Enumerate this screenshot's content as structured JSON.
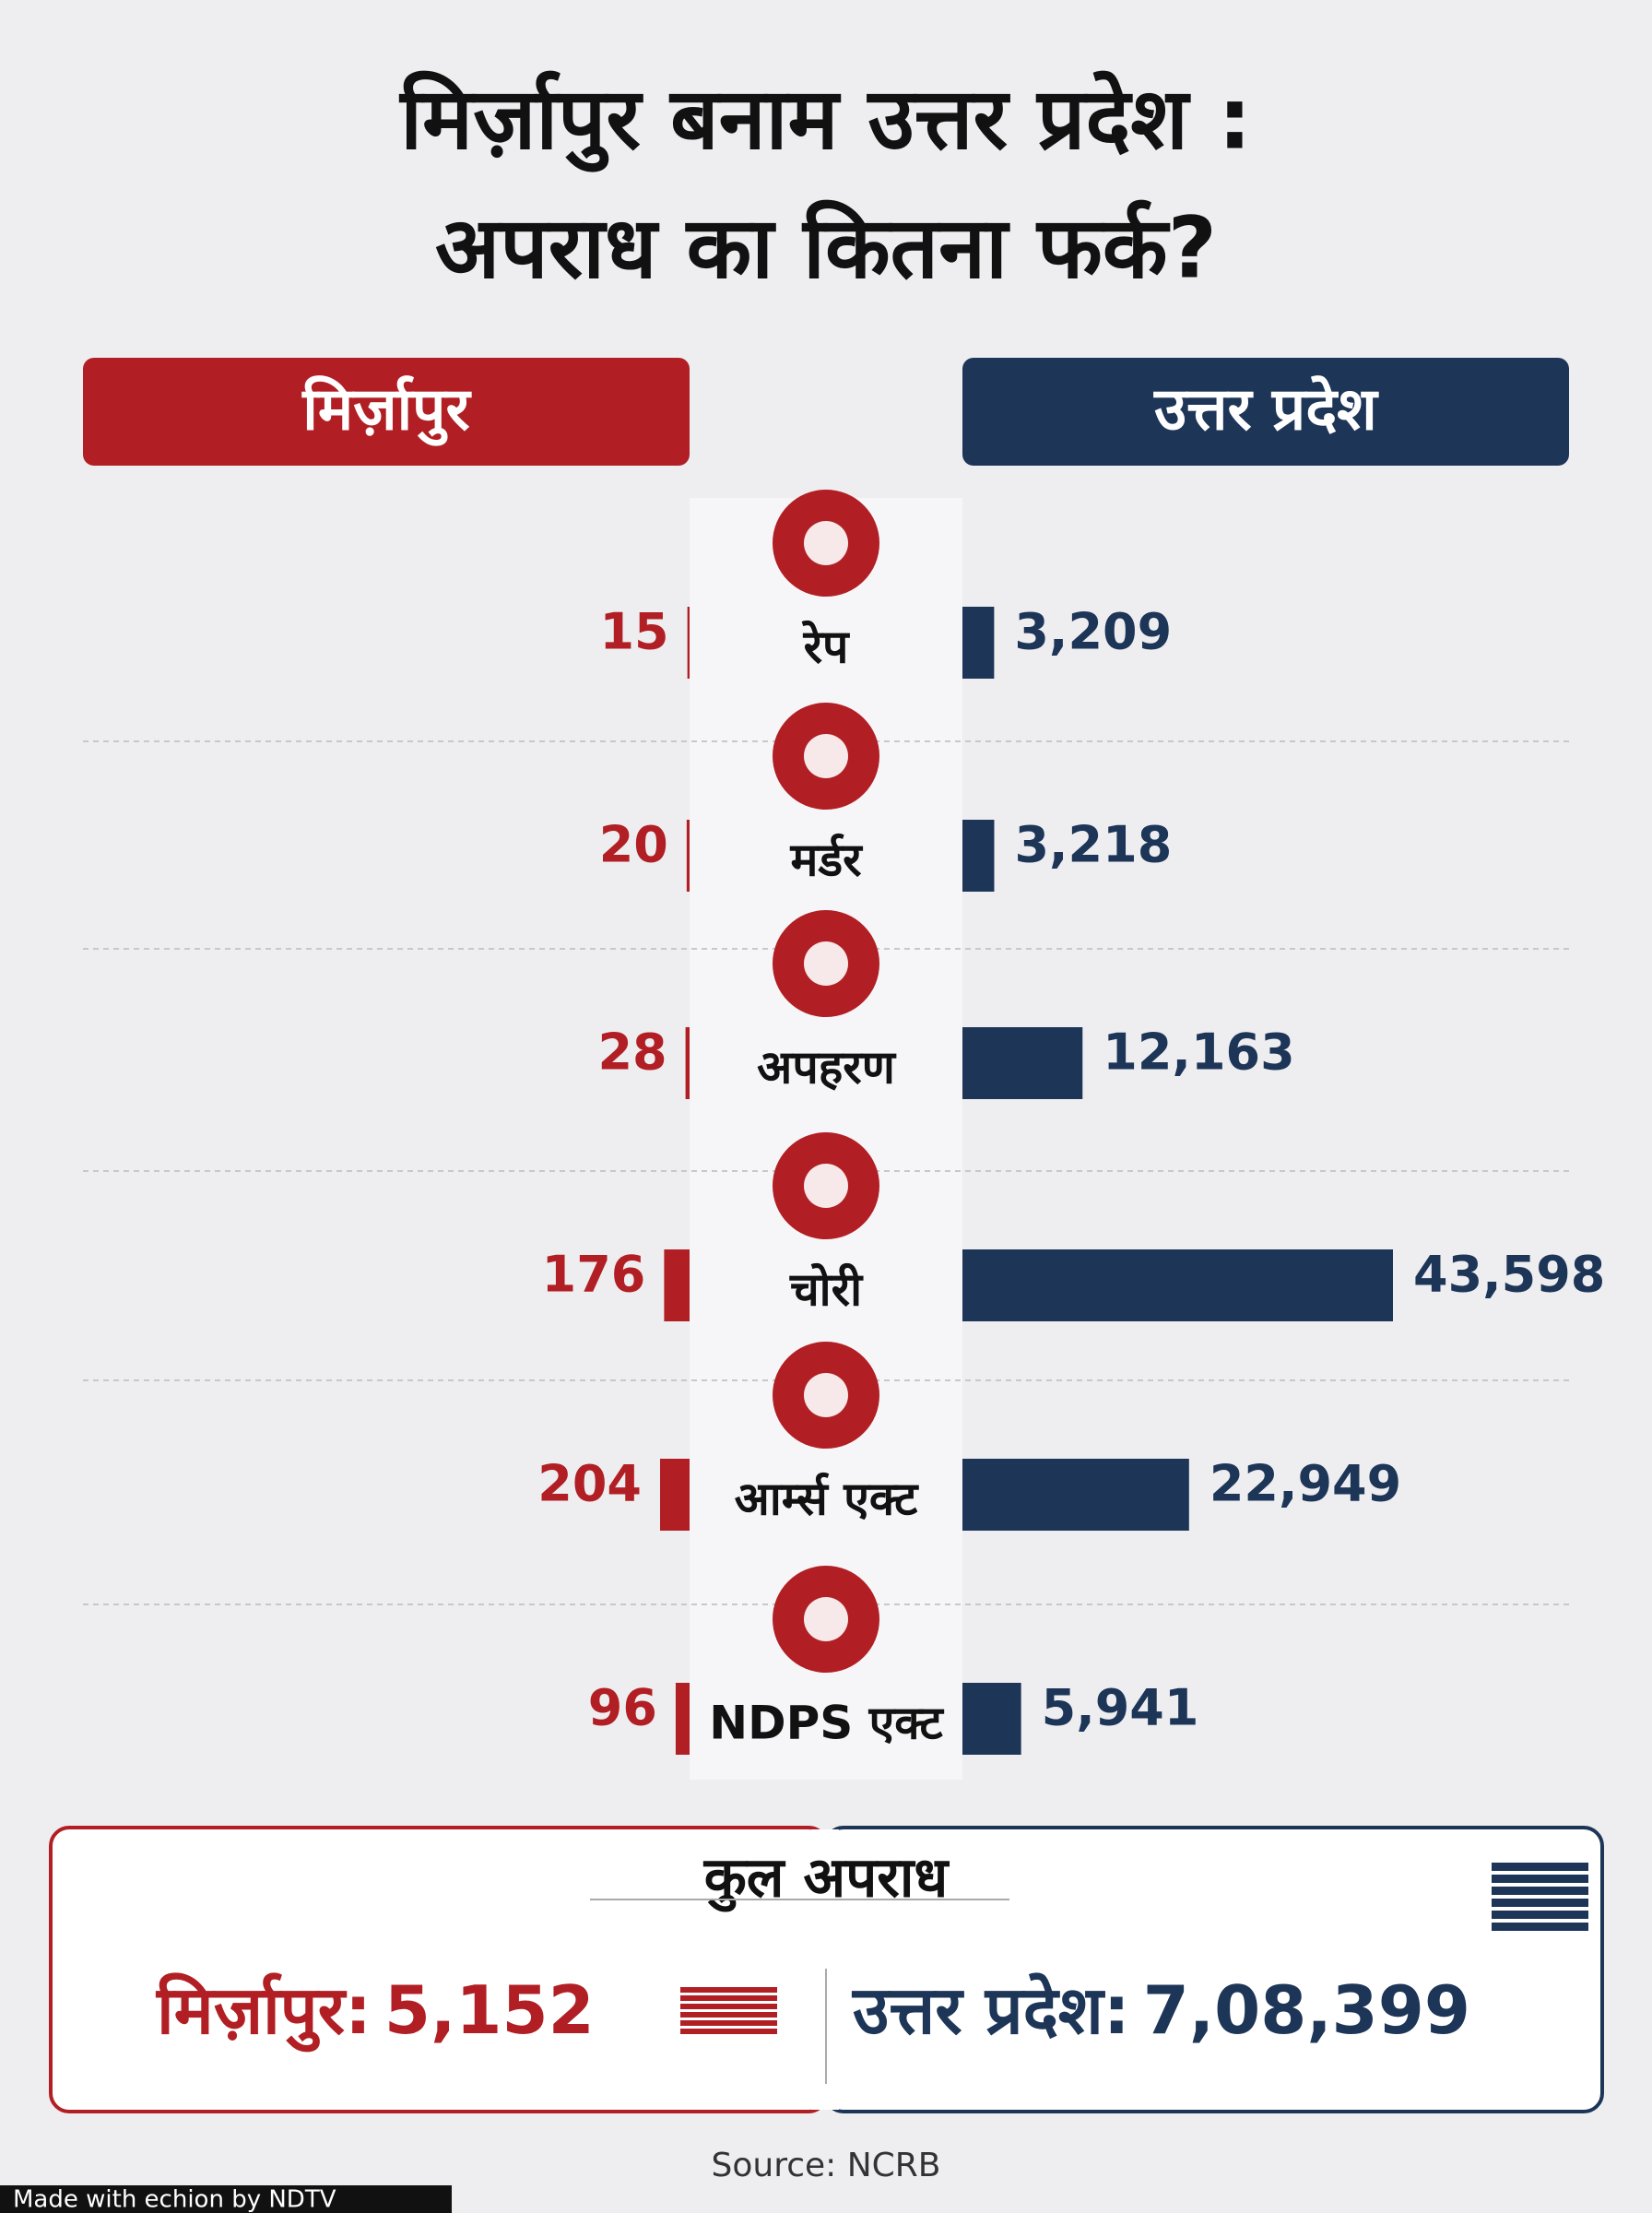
{
  "chart_data": {
    "type": "butterfly",
    "title": [
      "मिर्ज़ापुर बनाम उत्तर प्रदेश :",
      "अपराध का कितना फर्क?"
    ],
    "categories": [
      "रेप",
      "मर्डर",
      "अपहरण",
      "चोरी",
      "आर्म्स एक्ट",
      "NDPS एक्ट"
    ],
    "series": [
      {
        "name": "मिर्ज़ापुर",
        "color": "#b11f24",
        "values": [
          15,
          20,
          28,
          176,
          204,
          96
        ],
        "value_labels": [
          "15",
          "20",
          "28",
          "176",
          "204",
          "96"
        ]
      },
      {
        "name": "उत्तर प्रदेश",
        "color": "#1d3557",
        "values": [
          3209,
          3218,
          12163,
          43598,
          22949,
          5941
        ],
        "value_labels": [
          "3,209",
          "3,218",
          "12,163",
          "43,598",
          "22,949",
          "5,941"
        ]
      }
    ],
    "totals": {
      "title": "कुल अपराध",
      "items": [
        {
          "label": "मिर्ज़ापुर:",
          "value": 5152,
          "value_label": "5,152"
        },
        {
          "label": "उत्तर प्रदेश:",
          "value": 708399,
          "value_label": "7,08,399"
        }
      ]
    },
    "source": "Source: NCRB",
    "footer": "Made with echion by NDTV"
  }
}
